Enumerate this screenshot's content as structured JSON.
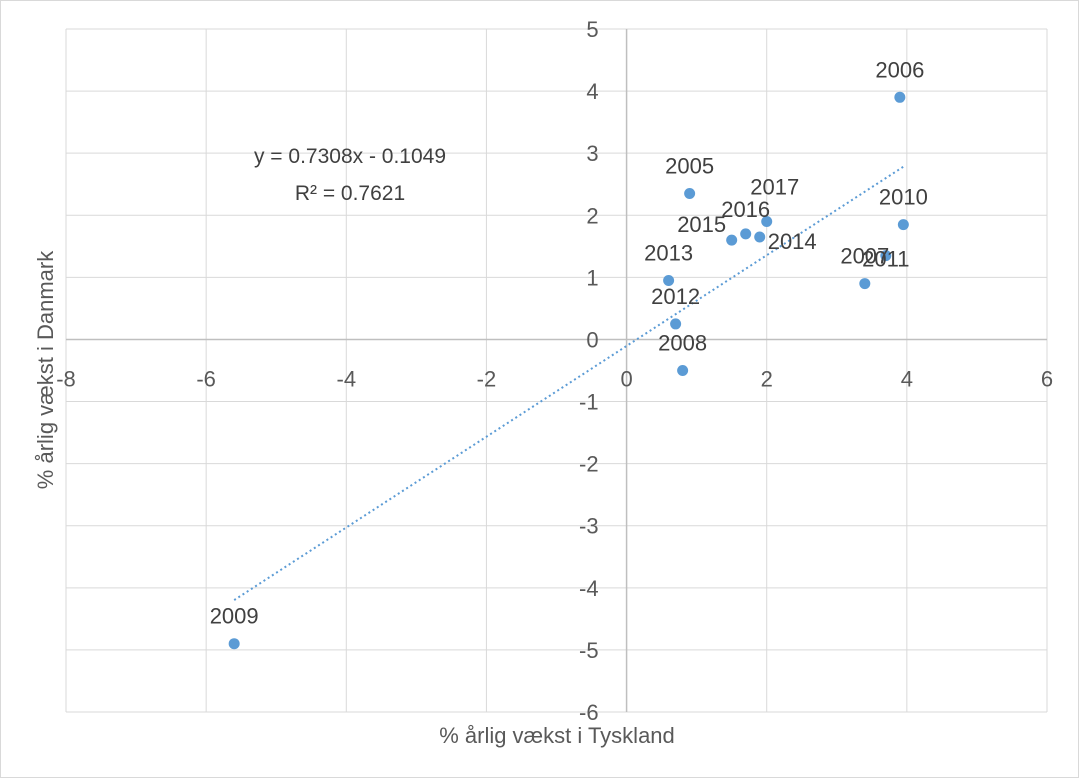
{
  "chart_data": {
    "type": "scatter",
    "title": "",
    "xlabel": "% årlig vækst i Tyskland",
    "ylabel": "% årlig vækst i Danmark",
    "xlim": [
      -8,
      6
    ],
    "ylim": [
      -6,
      5
    ],
    "x_ticks": [
      "-8",
      "-6",
      "-4",
      "-2",
      "0",
      "2",
      "4",
      "6"
    ],
    "y_ticks": [
      "5",
      "4",
      "3",
      "2",
      "1",
      "0",
      "-1",
      "-2",
      "-3",
      "-4",
      "-5",
      "-6"
    ],
    "grid": true,
    "marker_color": "#5b9bd5",
    "points": [
      {
        "label": "2005",
        "x": 0.9,
        "y": 2.35
      },
      {
        "label": "2006",
        "x": 3.9,
        "y": 3.9
      },
      {
        "label": "2007",
        "x": 3.4,
        "y": 0.9
      },
      {
        "label": "2008",
        "x": 0.8,
        "y": -0.5
      },
      {
        "label": "2009",
        "x": -5.6,
        "y": -4.9
      },
      {
        "label": "2010",
        "x": 3.95,
        "y": 1.85
      },
      {
        "label": "2011",
        "x": 3.7,
        "y": 1.35
      },
      {
        "label": "2012",
        "x": 0.7,
        "y": 0.25
      },
      {
        "label": "2013",
        "x": 0.6,
        "y": 0.95
      },
      {
        "label": "2014",
        "x": 1.9,
        "y": 1.65
      },
      {
        "label": "2015",
        "x": 1.5,
        "y": 1.6
      },
      {
        "label": "2016",
        "x": 1.7,
        "y": 1.7
      },
      {
        "label": "2017",
        "x": 2.0,
        "y": 1.9
      }
    ],
    "trendline": {
      "style": "dotted",
      "color": "#5b9bd5",
      "x_range": [
        -5.6,
        3.95
      ],
      "equation": "y = 0.7308x - 0.1049",
      "r_squared": "R² = 0.7621"
    }
  }
}
